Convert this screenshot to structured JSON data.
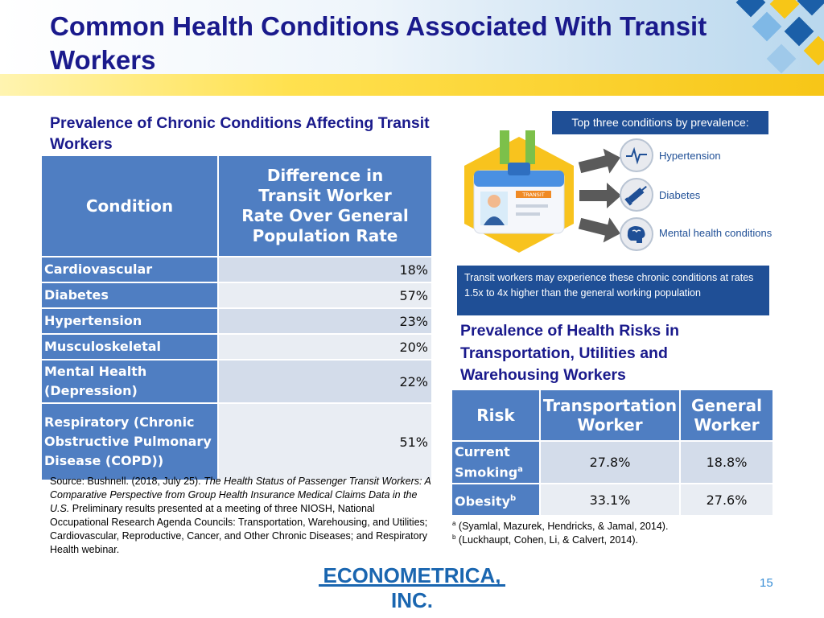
{
  "slide": {
    "title": "Common Health Conditions Associated With Transit Workers",
    "page_number": "15"
  },
  "chronic": {
    "heading": "Prevalence of Chronic Conditions Affecting Transit Workers",
    "col_condition": "Condition",
    "col_difference": "Difference in Transit Worker Rate Over General Population Rate",
    "rows": [
      {
        "condition": "Cardiovascular",
        "value": "18%"
      },
      {
        "condition": "Diabetes",
        "value": "57%"
      },
      {
        "condition": "Hypertension",
        "value": "23%"
      },
      {
        "condition": "Musculoskeletal",
        "value": "20%"
      },
      {
        "condition": "Mental Health (Depression)",
        "value": "22%"
      },
      {
        "condition": "Respiratory (Chronic Obstructive Pulmonary Disease (COPD))",
        "value": "51%"
      }
    ],
    "source_prefix": "Source: Bushnell. (2018, July 25). ",
    "source_title": "The Health Status of Passenger Transit Workers: A Comparative Perspective from Group Health Insurance Medical Claims Data in the U.S.",
    "source_suffix": " Preliminary results presented at a meeting of three NIOSH, National Occupational Research Agenda Councils: Transportation, Warehousing, and Utilities; Cardiovascular, Reproductive, Cancer, and Other Chronic Diseases; and Respiratory Health webinar."
  },
  "infographic": {
    "header": "Top three conditions by prevalence:",
    "badge_label": "TRANSIT",
    "conditions": [
      {
        "label": "Hypertension",
        "icon": "heartbeat-icon"
      },
      {
        "label": "Diabetes",
        "icon": "syringe-icon"
      },
      {
        "label": "Mental health conditions",
        "icon": "brain-icon"
      }
    ],
    "footer": "Transit workers may experience these chronic conditions at rates 1.5x to 4x higher than the general working population"
  },
  "risks": {
    "heading": "Prevalence of Health Risks in Transportation, Utilities and Warehousing Workers",
    "col_risk": "Risk",
    "col_transport": "Transportation Worker",
    "col_general": "General Worker",
    "rows": [
      {
        "risk": "Current Smoking",
        "sup": "a",
        "transport": "27.8%",
        "general": "18.8%"
      },
      {
        "risk": "Obesity",
        "sup": "b",
        "transport": "33.1%",
        "general": "27.6%"
      }
    ],
    "footnotes": [
      {
        "mark": "a",
        "text": " (Syamlal, Mazurek, Hendricks, & Jamal, 2014)."
      },
      {
        "mark": "b",
        "text": " (Luckhaupt, Cohen, Li, & Calvert, 2014)."
      }
    ]
  },
  "logo": {
    "text": "ECONOMETRICA, INC."
  },
  "colors": {
    "title": "#1a1a8c",
    "table_header": "#4f7ec2",
    "accent_blue": "#1f4f96",
    "gold": "#f7c617"
  }
}
